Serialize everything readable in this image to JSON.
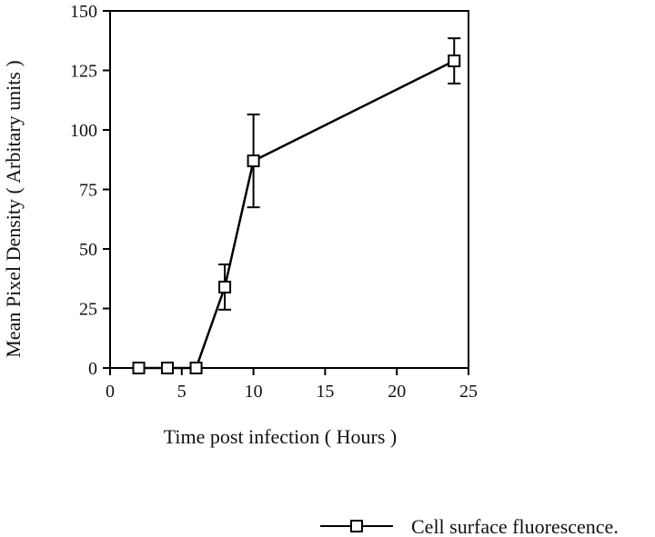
{
  "chart_data": {
    "type": "line",
    "title": "",
    "xlabel": "Time post infection ( Hours )",
    "ylabel": "Mean Pixel Density ( Arbitary units )",
    "xlim": [
      0,
      25
    ],
    "ylim": [
      0,
      150
    ],
    "x_ticks": [
      "0",
      "5",
      "10",
      "15",
      "20",
      "25"
    ],
    "y_ticks": [
      "0",
      "25",
      "50",
      "75",
      "100",
      "125",
      "150"
    ],
    "grid": false,
    "legend_position": "bottom-right",
    "series": [
      {
        "name": "Cell surface fluorescence.",
        "marker": "open-square",
        "color": "#000000",
        "points": [
          {
            "x": 2,
            "y": 0,
            "err": null
          },
          {
            "x": 4,
            "y": 0,
            "err": null
          },
          {
            "x": 6,
            "y": 0,
            "err": null
          },
          {
            "x": 8,
            "y": 34,
            "err": 9.5
          },
          {
            "x": 10,
            "y": 87,
            "err": 19.5
          },
          {
            "x": 24,
            "y": 129,
            "err": 9.5
          }
        ]
      }
    ]
  }
}
